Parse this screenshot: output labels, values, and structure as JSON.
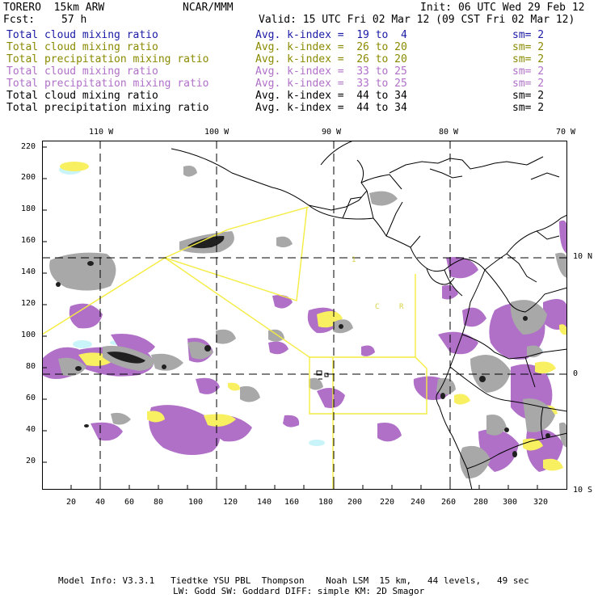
{
  "header": {
    "model": "TORERO  15km ARW",
    "org": "NCAR/MMM",
    "init": "Init: 06 UTC Wed 29 Feb 12",
    "fcst_label": "Fcst:",
    "fcst_value": "57 h",
    "valid": "Valid: 15 UTC Fri 02 Mar 12 (09 CST Fri 02 Mar 12)"
  },
  "legend": [
    {
      "field": "Total cloud mixing ratio",
      "kindex": "Avg. k-index =  19 to  4",
      "sm": "sm= 2",
      "color": "#1a1aa6"
    },
    {
      "field": "Total cloud mixing ratio",
      "kindex": "Avg. k-index =  26 to 20",
      "sm": "sm= 2",
      "color": "#8a8a00"
    },
    {
      "field": "Total precipitation mixing ratio",
      "kindex": "Avg. k-index =  26 to 20",
      "sm": "sm= 2",
      "color": "#8a8a00"
    },
    {
      "field": "Total cloud mixing ratio",
      "kindex": "Avg. k-index =  33 to 25",
      "sm": "sm= 2",
      "color": "#b070c8"
    },
    {
      "field": "Total precipitation mixing ratio",
      "kindex": "Avg. k-index =  33 to 25",
      "sm": "sm= 2",
      "color": "#b070c8"
    },
    {
      "field": "Total cloud mixing ratio",
      "kindex": "Avg. k-index =  44 to 34",
      "sm": "sm= 2",
      "color": "#000000"
    },
    {
      "field": "Total precipitation mixing ratio",
      "kindex": "Avg. k-index =  44 to 34",
      "sm": "sm= 2",
      "color": "#000000"
    }
  ],
  "axes": {
    "x_ticks": [
      "20",
      "40",
      "60",
      "80",
      "100",
      "120",
      "140",
      "160",
      "180",
      "200",
      "220",
      "240",
      "260",
      "280",
      "300",
      "320"
    ],
    "y_ticks": [
      "220",
      "200",
      "180",
      "160",
      "140",
      "120",
      "100",
      "80",
      "60",
      "40",
      "20"
    ],
    "lon_labels": [
      "110 W",
      "100 W",
      "90 W",
      "80 W",
      "70 W"
    ],
    "lat_labels": [
      "10 N",
      "0",
      "10 S"
    ]
  },
  "map_labels": {
    "lbl_1": "1",
    "lbl_2": "C",
    "lbl_3": "R"
  },
  "colors": {
    "gray": "#a8a8a8",
    "dark": "#202020",
    "purple": "#b070c8",
    "yellow": "#f8f060",
    "cyan": "#c8f4fa",
    "boundary": "#f4ec40"
  },
  "footer": {
    "line1": "Model Info: V3.3.1   Tiedtke YSU PBL  Thompson    Noah LSM  15 km,   44 levels,   49 sec",
    "line2": "LW: Godd SW: Goddard DIFF: simple KM: 2D Smagor"
  }
}
